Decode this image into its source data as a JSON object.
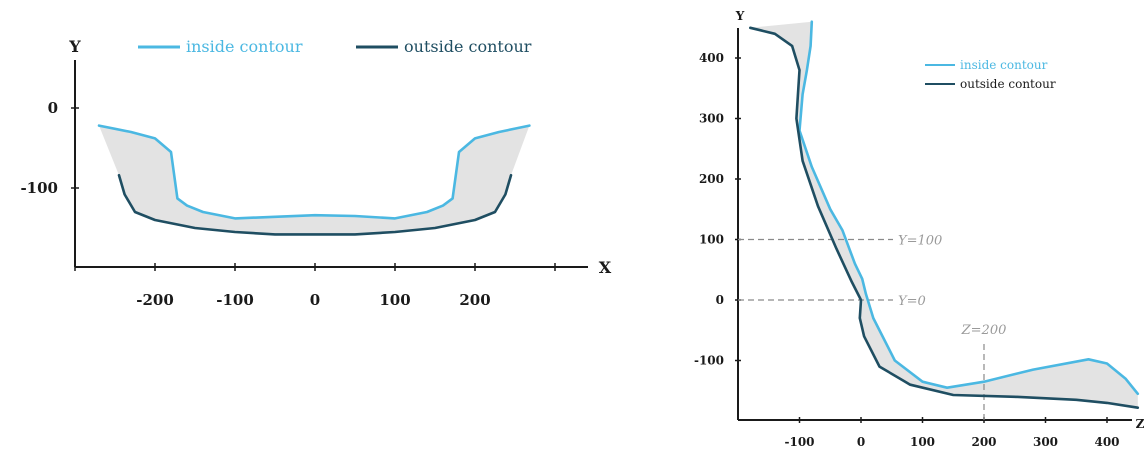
{
  "colors": {
    "inside": "#4bb8e2",
    "outside": "#1f4e62",
    "band": "#e3e3e3"
  },
  "chart_data": [
    {
      "type": "line",
      "title": "",
      "xlabel": "X",
      "ylabel": "Y",
      "xlim": [
        -300,
        300
      ],
      "ylim": [
        -190,
        55
      ],
      "x_ticks": [
        -200,
        -100,
        0,
        100,
        200
      ],
      "y_ticks": [
        0,
        -100
      ],
      "grid": false,
      "legend": {
        "placement": "top"
      },
      "shaded_between_series": true,
      "series": [
        {
          "name": "inside contour",
          "color_key": "inside",
          "points": [
            [
              -270,
              -22
            ],
            [
              -230,
              -30
            ],
            [
              -200,
              -38
            ],
            [
              -180,
              -55
            ],
            [
              -172,
              -113
            ],
            [
              -160,
              -122
            ],
            [
              -140,
              -130
            ],
            [
              -100,
              -138
            ],
            [
              -50,
              -136
            ],
            [
              0,
              -134
            ],
            [
              50,
              -135
            ],
            [
              100,
              -138
            ],
            [
              140,
              -130
            ],
            [
              160,
              -122
            ],
            [
              172,
              -113
            ],
            [
              180,
              -55
            ],
            [
              200,
              -38
            ],
            [
              230,
              -30
            ],
            [
              268,
              -22
            ]
          ]
        },
        {
          "name": "outside contour",
          "color_key": "outside",
          "points": [
            [
              -245,
              -84
            ],
            [
              -238,
              -108
            ],
            [
              -225,
              -130
            ],
            [
              -200,
              -140
            ],
            [
              -150,
              -150
            ],
            [
              -100,
              -155
            ],
            [
              -50,
              -158
            ],
            [
              0,
              -158
            ],
            [
              50,
              -158
            ],
            [
              100,
              -155
            ],
            [
              150,
              -150
            ],
            [
              200,
              -140
            ],
            [
              225,
              -130
            ],
            [
              238,
              -108
            ],
            [
              245,
              -84
            ]
          ]
        }
      ]
    },
    {
      "type": "line",
      "title": "",
      "xlabel": "Z",
      "ylabel": "Y",
      "xlim": [
        -200,
        470
      ],
      "ylim": [
        -200,
        470
      ],
      "x_ticks": [
        -100,
        0,
        100,
        200,
        300,
        400
      ],
      "y_ticks": [
        400,
        300,
        200,
        100,
        0,
        -100
      ],
      "grid": false,
      "legend": {
        "placement": "top-right"
      },
      "shaded_between_series": true,
      "reference_lines": [
        {
          "axis": "y",
          "value": 100,
          "label": "Y=100"
        },
        {
          "axis": "y",
          "value": 0,
          "label": "Y=0"
        },
        {
          "axis": "z",
          "value": 200,
          "label": "Z=200"
        }
      ],
      "series": [
        {
          "name": "inside contour",
          "color_key": "inside",
          "points": [
            [
              -80,
              460
            ],
            [
              -82,
              420
            ],
            [
              -88,
              380
            ],
            [
              -95,
              340
            ],
            [
              -100,
              280
            ],
            [
              -80,
              220
            ],
            [
              -50,
              150
            ],
            [
              -30,
              115
            ],
            [
              -10,
              60
            ],
            [
              2,
              35
            ],
            [
              8,
              10
            ],
            [
              20,
              -30
            ],
            [
              55,
              -100
            ],
            [
              100,
              -135
            ],
            [
              140,
              -145
            ],
            [
              200,
              -135
            ],
            [
              280,
              -115
            ],
            [
              370,
              -98
            ],
            [
              400,
              -105
            ],
            [
              430,
              -130
            ],
            [
              450,
              -155
            ]
          ]
        },
        {
          "name": "outside contour",
          "color_key": "outside",
          "points": [
            [
              -180,
              450
            ],
            [
              -140,
              440
            ],
            [
              -112,
              420
            ],
            [
              -100,
              380
            ],
            [
              -105,
              300
            ],
            [
              -95,
              230
            ],
            [
              -70,
              155
            ],
            [
              -40,
              85
            ],
            [
              -15,
              30
            ],
            [
              0,
              0
            ],
            [
              -2,
              -30
            ],
            [
              5,
              -60
            ],
            [
              30,
              -110
            ],
            [
              80,
              -140
            ],
            [
              150,
              -157
            ],
            [
              250,
              -160
            ],
            [
              350,
              -165
            ],
            [
              400,
              -170
            ],
            [
              450,
              -178
            ]
          ]
        }
      ]
    }
  ]
}
